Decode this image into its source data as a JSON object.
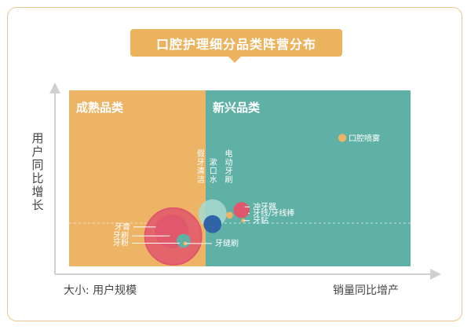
{
  "chart_data": {
    "type": "bubble",
    "title": "口腔护理细分品类阵营分布",
    "ylabel": "用户同比增长",
    "xlabel": "销量同比增产",
    "size_label": "大小: 用户规模",
    "xlim": [
      0,
      100
    ],
    "ylim": [
      0,
      100
    ],
    "grid": false,
    "quadrants": [
      {
        "name": "成熟品类",
        "color": "#eeb465"
      },
      {
        "name": "新兴品类",
        "color": "#5fb1a6"
      }
    ],
    "points": [
      {
        "label": "牙膏",
        "x": 30.5,
        "y": 17.0,
        "size": 100,
        "color": "#e0566c"
      },
      {
        "label": "牙刷",
        "x": 30.0,
        "y": 20.0,
        "size": 36,
        "color": "#e0566c"
      },
      {
        "label": "牙粉",
        "x": 33.5,
        "y": 14.5,
        "size": 6,
        "color": "#5fb1a6"
      },
      {
        "label": "牙缝刷",
        "x": 34.0,
        "y": 13.0,
        "size": 0.5,
        "color": "#eeb465"
      },
      {
        "label": "假牙清洁",
        "x": 42.0,
        "y": 30.0,
        "size": 25,
        "color": "#a8d9cf"
      },
      {
        "label": "漱口水",
        "x": 42.0,
        "y": 24.0,
        "size": 10,
        "color": "#2f64a6"
      },
      {
        "label": "电动牙刷",
        "x": 47.0,
        "y": 29.0,
        "size": 1.5,
        "color": "#eeb465"
      },
      {
        "label": "冲牙器",
        "x": 50.5,
        "y": 32.0,
        "size": 8,
        "color": "#e0566c"
      },
      {
        "label": "牙线/牙线棒",
        "x": 51.0,
        "y": 31.0,
        "size": 4,
        "color": "#e0566c"
      },
      {
        "label": "牙贴",
        "x": 51.0,
        "y": 26.0,
        "size": 0.5,
        "color": "#eeb465"
      },
      {
        "label": "口腔喷雾",
        "x": 80.0,
        "y": 73.0,
        "size": 2,
        "color": "#eeb465"
      }
    ]
  }
}
